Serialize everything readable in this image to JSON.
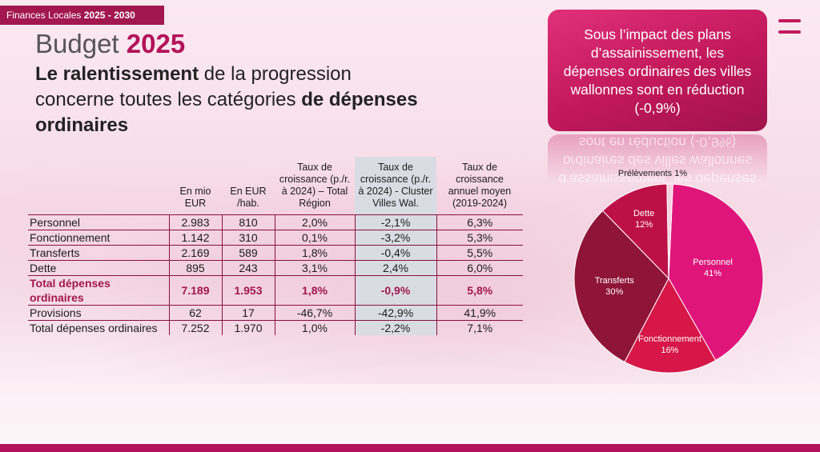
{
  "header": {
    "tag_text": "Finances Locales",
    "tag_years": "2025 - 2030",
    "title_prefix": "Budget",
    "title_year": "2025",
    "subtitle_bold1": "Le ralentissement",
    "subtitle_mid": " de la progression concerne toutes les catégories ",
    "subtitle_bold2": "de dépenses ordinaires"
  },
  "callout": {
    "text": "Sous l’impact des plans d’assainissement, les dépenses ordinaires des villes wallonnes sont en réduction (-0,9%)"
  },
  "table": {
    "columns": [
      "En mio EUR",
      "En EUR /hab.",
      "Taux de croissance (p./r. à 2024) – Total Région",
      "Taux de croissance (p./r. à 2024) - Cluster Villes Wal.",
      "Taux de croissance annuel moyen (2019-2024)"
    ],
    "rows": [
      {
        "label": "Personnel",
        "values": [
          "2.983",
          "810",
          "2,0%",
          "-2,1%",
          "6,3%"
        ]
      },
      {
        "label": "Fonctionnement",
        "values": [
          "1.142",
          "310",
          "0,1%",
          "-3,2%",
          "5,3%"
        ]
      },
      {
        "label": "Transferts",
        "values": [
          "2.169",
          "589",
          "1,8%",
          "-0,4%",
          "5,5%"
        ]
      },
      {
        "label": "Dette",
        "values": [
          "895",
          "243",
          "3,1%",
          "2,4%",
          "6,0%"
        ]
      },
      {
        "label": "Total dépenses ordinaires",
        "values": [
          "7.189",
          "1.953",
          "1,8%",
          "-0,9%",
          "5,8%"
        ]
      },
      {
        "label": "Provisions",
        "values": [
          "62",
          "17",
          "-46,7%",
          "-42,9%",
          "41,9%"
        ]
      },
      {
        "label": "Total dépenses ordinaires",
        "values": [
          "7.252",
          "1.970",
          "1,0%",
          "-2,2%",
          "7,1%"
        ]
      }
    ]
  },
  "chart_data": {
    "type": "pie",
    "slices": [
      {
        "label": "Personnel",
        "pct_label": "41%",
        "value": 41,
        "color": "#e0157b"
      },
      {
        "label": "Fonctionnement",
        "pct_label": "16%",
        "value": 16,
        "color": "#d61747"
      },
      {
        "label": "Transferts",
        "pct_label": "30%",
        "value": 30,
        "color": "#8f1538"
      },
      {
        "label": "Dette",
        "pct_label": "12%",
        "value": 12,
        "color": "#be1048"
      },
      {
        "label": "Prélèvements",
        "pct_label": "1%",
        "value": 1,
        "color": "#f4d2e0"
      }
    ]
  },
  "colors": {
    "accent": "#b3125b",
    "callout": "#c2185b",
    "cluster_column": "#d9dde3"
  }
}
